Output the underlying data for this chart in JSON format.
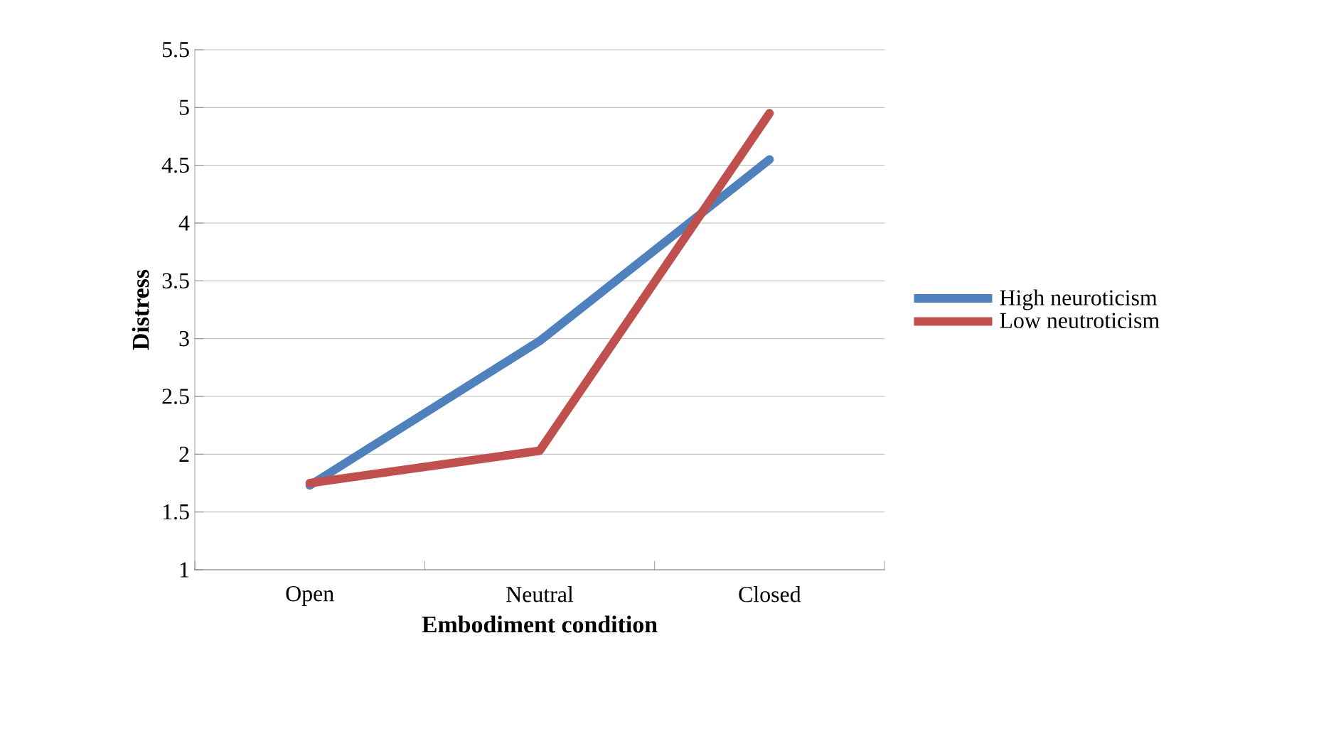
{
  "chart_data": {
    "type": "line",
    "xlabel": "Embodiment condition",
    "ylabel": "Distress",
    "categories": [
      "Open",
      "Neutral",
      "Closed"
    ],
    "series": [
      {
        "name": "High neuroticism",
        "color": "#4f81bd",
        "values": [
          1.73,
          2.98,
          4.55
        ]
      },
      {
        "name": "Low neutroticism",
        "color": "#c0504d",
        "values": [
          1.75,
          2.03,
          4.95
        ]
      }
    ],
    "ylim": [
      1,
      5.5
    ],
    "yticks": [
      1,
      1.5,
      2,
      2.5,
      3,
      3.5,
      4,
      4.5,
      5,
      5.5
    ],
    "grid": "y",
    "legend": "right",
    "marker": "none",
    "line_style": "solid"
  }
}
